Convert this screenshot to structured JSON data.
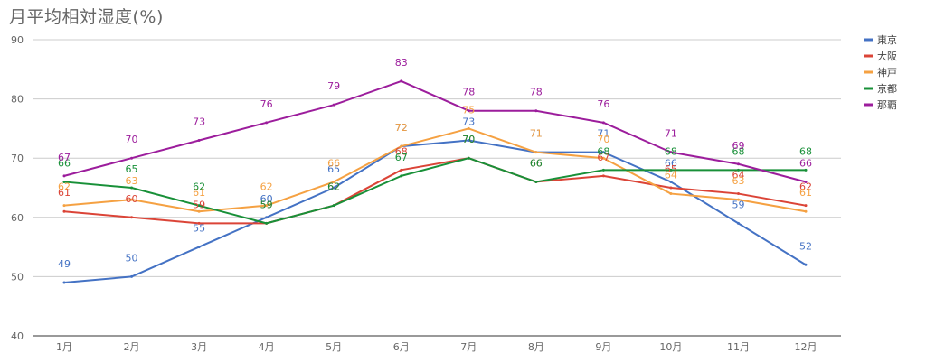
{
  "chart_data": {
    "type": "line",
    "title": "月平均相対湿度(%)",
    "xlabel": "",
    "ylabel": "",
    "ylim": [
      40,
      90
    ],
    "yticks": [
      40,
      50,
      60,
      70,
      80,
      90
    ],
    "grid": true,
    "legend_position": "right",
    "categories": [
      "1月",
      "2月",
      "3月",
      "4月",
      "5月",
      "6月",
      "7月",
      "8月",
      "9月",
      "10月",
      "11月",
      "12月"
    ],
    "series": [
      {
        "name": "東京",
        "color": "#4472c4",
        "values": [
          49,
          50,
          55,
          60,
          65,
          72,
          73,
          71,
          71,
          66,
          59,
          52
        ]
      },
      {
        "name": "大阪",
        "color": "#db4437",
        "values": [
          61,
          60,
          59,
          59,
          62,
          68,
          70,
          66,
          67,
          65,
          64,
          62
        ]
      },
      {
        "name": "神戸",
        "color": "#f5a142",
        "values": [
          62,
          63,
          61,
          62,
          66,
          72,
          75,
          71,
          70,
          64,
          63,
          61
        ]
      },
      {
        "name": "京都",
        "color": "#189038",
        "values": [
          66,
          65,
          62,
          59,
          62,
          67,
          70,
          66,
          68,
          68,
          68,
          68
        ]
      },
      {
        "name": "那覇",
        "color": "#9c1d9c",
        "values": [
          67,
          70,
          73,
          76,
          79,
          83,
          78,
          78,
          76,
          71,
          69,
          66
        ]
      }
    ]
  }
}
